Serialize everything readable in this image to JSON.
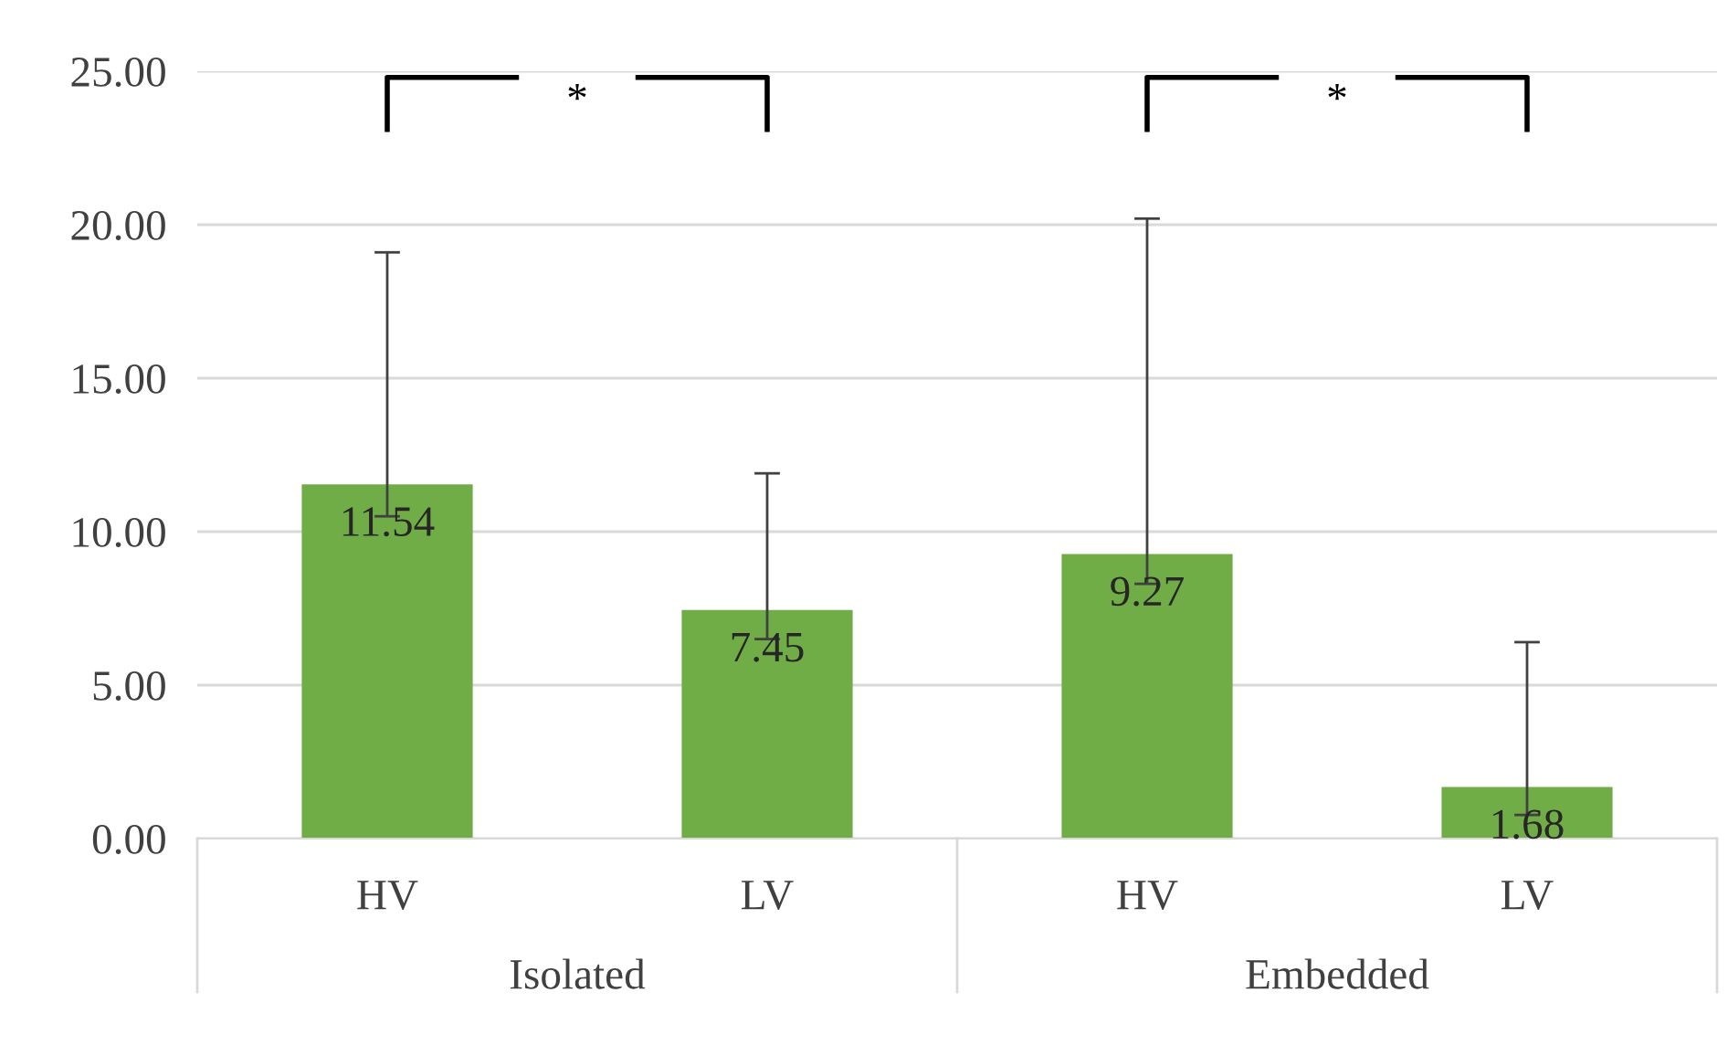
{
  "chart_data": {
    "type": "bar",
    "categories": [
      "HV",
      "LV",
      "HV",
      "LV"
    ],
    "values": [
      11.54,
      7.45,
      9.27,
      1.68
    ],
    "errors": [
      [
        10.5,
        19.1
      ],
      [
        6.5,
        11.9
      ],
      [
        8.3,
        20.2
      ],
      [
        0.77,
        6.4
      ]
    ],
    "color": "#70ad47",
    "data_labels": true,
    "ylim": [
      0,
      25
    ],
    "yticks": [
      {
        "value": 0,
        "label": "0.00"
      },
      {
        "value": 5,
        "label": "5.00"
      },
      {
        "value": 10,
        "label": "10.00"
      },
      {
        "value": 15,
        "label": "15.00"
      },
      {
        "value": 20,
        "label": "20.00"
      },
      {
        "value": 25,
        "label": "25.00"
      }
    ],
    "grid": "y",
    "annotations": [
      "*",
      "*",
      "Isolated",
      "Embedded"
    ]
  }
}
